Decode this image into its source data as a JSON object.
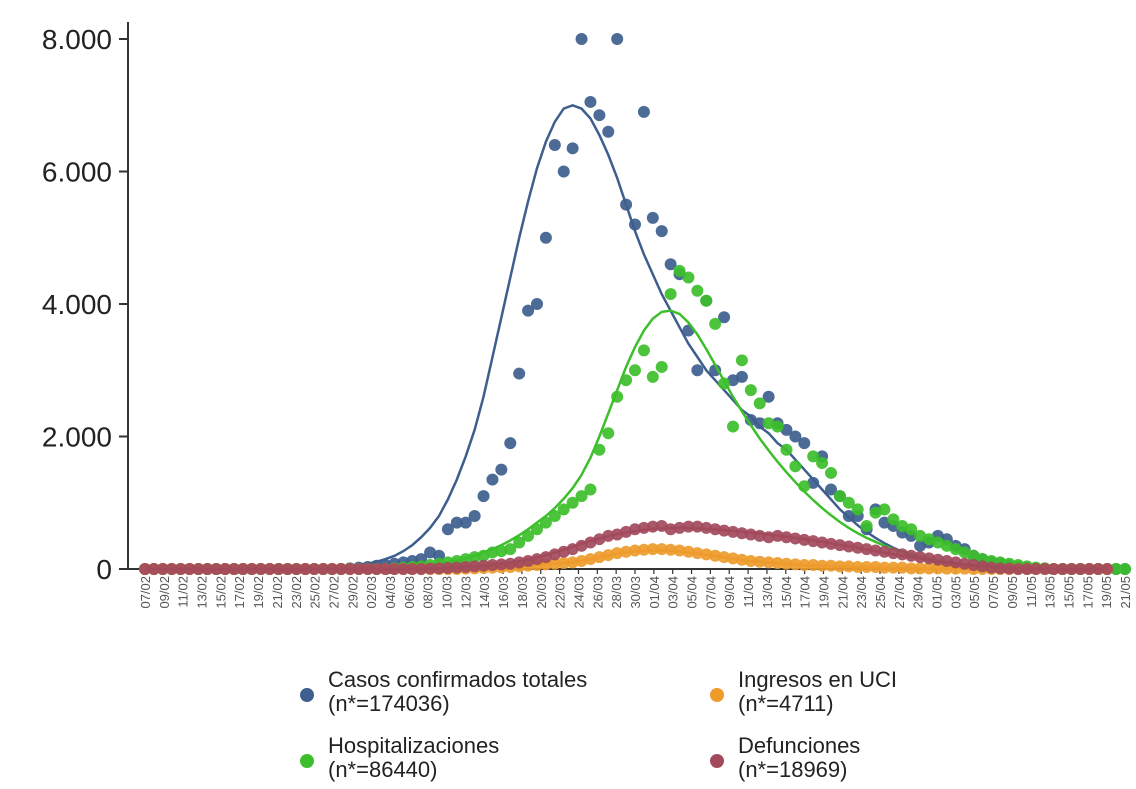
{
  "chart_data": {
    "type": "scatter",
    "title": "",
    "xlabel": "",
    "ylabel": "",
    "ylim": [
      0,
      8000
    ],
    "yticks": [
      0,
      2000,
      4000,
      6000,
      8000
    ],
    "ytick_labels": [
      "0",
      "2.000",
      "4.000",
      "6.000",
      "8.000"
    ],
    "x_tick_labels": [
      "07/02",
      "09/02",
      "11/02",
      "13/02",
      "15/02",
      "17/02",
      "19/02",
      "21/02",
      "23/02",
      "25/02",
      "27/02",
      "29/02",
      "02/03",
      "04/03",
      "06/03",
      "08/03",
      "10/03",
      "12/03",
      "14/03",
      "16/03",
      "18/03",
      "20/03",
      "22/03",
      "24/03",
      "26/03",
      "28/03",
      "30/03",
      "01/04",
      "03/04",
      "05/04",
      "07/04",
      "09/04",
      "11/04",
      "13/04",
      "15/04",
      "17/04",
      "19/04",
      "21/04",
      "23/04",
      "25/04",
      "27/04",
      "29/04",
      "01/05",
      "03/05",
      "05/05",
      "07/05",
      "09/05",
      "11/05",
      "13/05",
      "15/05",
      "17/05",
      "19/05",
      "21/05"
    ],
    "grid": false,
    "legend_position": "bottom",
    "series": [
      {
        "name": "Casos confirmados totales",
        "n_label": "(n*=174036)",
        "color": "#3e5e8e",
        "points": [
          0,
          0,
          0,
          0,
          0,
          0,
          0,
          0,
          0,
          0,
          0,
          0,
          0,
          0,
          0,
          0,
          0,
          0,
          0,
          0,
          0,
          0,
          0,
          10,
          20,
          30,
          50,
          60,
          80,
          100,
          120,
          150,
          250,
          200,
          600,
          700,
          700,
          800,
          1100,
          1350,
          1500,
          1900,
          2950,
          3900,
          4000,
          5000,
          6400,
          6000,
          6350,
          8000,
          7050,
          6850,
          6600,
          8000,
          5500,
          5200,
          6900,
          5300,
          5100,
          4600,
          4450,
          3600,
          3000,
          4050,
          3000,
          3800,
          2850,
          2900,
          2250,
          2200,
          2600,
          2200,
          2100,
          2000,
          1900,
          1300,
          1700,
          1200,
          1100,
          800,
          800,
          600,
          900,
          700,
          650,
          550,
          500,
          350,
          400,
          500,
          450,
          350,
          300,
          200,
          150,
          100,
          80,
          50,
          30,
          20,
          10,
          10,
          0,
          0,
          0,
          0,
          0,
          0,
          0,
          0,
          0
        ],
        "trend": [
          0,
          0,
          0,
          0,
          0,
          0,
          0,
          0,
          0,
          0,
          0,
          0,
          0,
          0,
          0,
          0,
          0,
          0,
          0,
          5,
          10,
          20,
          30,
          40,
          60,
          80,
          110,
          150,
          200,
          270,
          360,
          480,
          620,
          800,
          1050,
          1350,
          1700,
          2100,
          2600,
          3200,
          3800,
          4400,
          5000,
          5550,
          6050,
          6450,
          6750,
          6950,
          7000,
          6950,
          6800,
          6550,
          6250,
          5900,
          5500,
          5100,
          4750,
          4450,
          4150,
          3900,
          3650,
          3400,
          3200,
          3000,
          2850,
          2700,
          2550,
          2400,
          2300,
          2150,
          2050,
          1900,
          1800,
          1650,
          1500,
          1350,
          1200,
          1050,
          900,
          780,
          660,
          560,
          470,
          390,
          320,
          260,
          210,
          170,
          130,
          100,
          80,
          60,
          45,
          30,
          20,
          12,
          6,
          2,
          0,
          0,
          0,
          0,
          0,
          0,
          0,
          0,
          0,
          0
        ]
      },
      {
        "name": "Hospitalizaciones",
        "n_label": "(n*=86440)",
        "color": "#3cbf2a",
        "points": [
          0,
          0,
          0,
          0,
          0,
          0,
          0,
          0,
          0,
          0,
          0,
          0,
          0,
          0,
          0,
          0,
          0,
          0,
          0,
          0,
          0,
          0,
          0,
          0,
          0,
          0,
          0,
          0,
          10,
          20,
          30,
          40,
          60,
          80,
          100,
          120,
          150,
          180,
          200,
          250,
          270,
          300,
          400,
          500,
          600,
          700,
          800,
          900,
          1000,
          1100,
          1200,
          1800,
          2050,
          2600,
          2850,
          3000,
          3300,
          2900,
          3050,
          4150,
          4500,
          4400,
          4200,
          4050,
          3700,
          2800,
          2150,
          3150,
          2700,
          2500,
          2200,
          2150,
          1800,
          1550,
          1250,
          1700,
          1600,
          1450,
          1100,
          1000,
          900,
          650,
          850,
          900,
          750,
          650,
          600,
          500,
          450,
          400,
          350,
          300,
          250,
          200,
          150,
          120,
          100,
          80,
          60,
          40,
          20,
          10,
          0,
          0,
          0,
          0,
          0,
          0,
          0,
          0,
          0
        ],
        "trend": [
          0,
          0,
          0,
          0,
          0,
          0,
          0,
          0,
          0,
          0,
          0,
          0,
          0,
          0,
          0,
          0,
          0,
          0,
          0,
          0,
          0,
          0,
          0,
          0,
          0,
          0,
          0,
          0,
          10,
          20,
          30,
          45,
          60,
          80,
          100,
          130,
          160,
          200,
          250,
          300,
          360,
          430,
          510,
          600,
          700,
          800,
          920,
          1060,
          1220,
          1420,
          1680,
          2000,
          2350,
          2700,
          3050,
          3350,
          3600,
          3780,
          3880,
          3900,
          3850,
          3720,
          3540,
          3320,
          3080,
          2840,
          2600,
          2380,
          2170,
          1970,
          1790,
          1620,
          1460,
          1310,
          1170,
          1040,
          920,
          810,
          710,
          620,
          540,
          470,
          410,
          350,
          300,
          260,
          220,
          190,
          160,
          130,
          110,
          90,
          70,
          55,
          40,
          30,
          20,
          12,
          6,
          2,
          0,
          0,
          0,
          0,
          0,
          0,
          0,
          0,
          0
        ]
      },
      {
        "name": "Ingresos en UCI",
        "n_label": "(n*=4711)",
        "color": "#ee9b2b",
        "points": [
          0,
          0,
          0,
          0,
          0,
          0,
          0,
          0,
          0,
          0,
          0,
          0,
          0,
          0,
          0,
          0,
          0,
          0,
          0,
          0,
          0,
          0,
          0,
          0,
          0,
          0,
          0,
          0,
          0,
          0,
          0,
          0,
          0,
          0,
          0,
          0,
          5,
          10,
          15,
          20,
          25,
          30,
          40,
          50,
          60,
          70,
          80,
          90,
          100,
          120,
          150,
          180,
          210,
          240,
          260,
          280,
          290,
          300,
          300,
          290,
          280,
          260,
          240,
          220,
          200,
          180,
          160,
          140,
          120,
          110,
          100,
          90,
          80,
          70,
          60,
          60,
          50,
          50,
          40,
          40,
          30,
          30,
          30,
          20,
          20,
          20,
          10,
          10,
          10,
          10,
          5,
          5,
          5,
          0,
          0,
          0,
          0,
          0,
          0,
          0,
          0,
          0,
          0,
          0,
          0,
          0,
          0,
          0,
          0
        ],
        "trend": [
          0,
          0,
          0,
          0,
          0,
          0,
          0,
          0,
          0,
          0,
          0,
          0,
          0,
          0,
          0,
          0,
          0,
          0,
          0,
          0,
          0,
          0,
          0,
          0,
          0,
          0,
          0,
          0,
          0,
          0,
          0,
          0,
          0,
          0,
          0,
          0,
          5,
          10,
          15,
          20,
          25,
          30,
          40,
          50,
          60,
          70,
          80,
          90,
          105,
          125,
          150,
          180,
          205,
          230,
          250,
          265,
          275,
          280,
          280,
          275,
          265,
          250,
          235,
          215,
          195,
          175,
          155,
          138,
          122,
          108,
          96,
          85,
          75,
          66,
          58,
          51,
          45,
          40,
          35,
          31,
          27,
          23,
          20,
          17,
          14,
          12,
          10,
          8,
          6,
          5,
          4,
          3,
          2,
          1,
          0,
          0,
          0,
          0,
          0,
          0,
          0,
          0,
          0,
          0,
          0,
          0,
          0,
          0,
          0
        ]
      },
      {
        "name": "Defunciones",
        "n_label": "(n*=18969)",
        "color": "#a24a5c",
        "points": [
          0,
          0,
          0,
          0,
          0,
          0,
          0,
          0,
          0,
          0,
          0,
          0,
          0,
          0,
          0,
          0,
          0,
          0,
          0,
          0,
          0,
          0,
          0,
          0,
          0,
          0,
          0,
          0,
          0,
          0,
          0,
          0,
          5,
          10,
          15,
          20,
          30,
          40,
          50,
          60,
          70,
          80,
          100,
          120,
          150,
          180,
          220,
          260,
          300,
          350,
          400,
          450,
          500,
          520,
          560,
          600,
          620,
          640,
          650,
          600,
          620,
          640,
          640,
          620,
          600,
          580,
          560,
          540,
          520,
          500,
          480,
          500,
          480,
          460,
          440,
          420,
          400,
          380,
          360,
          340,
          320,
          300,
          280,
          260,
          240,
          220,
          200,
          180,
          160,
          140,
          120,
          100,
          80,
          60,
          40,
          20,
          10,
          5,
          0,
          0,
          0,
          0,
          0,
          0,
          0,
          0,
          0,
          0,
          0
        ],
        "trend": [
          0,
          0,
          0,
          0,
          0,
          0,
          0,
          0,
          0,
          0,
          0,
          0,
          0,
          0,
          0,
          0,
          0,
          0,
          0,
          0,
          0,
          0,
          0,
          0,
          0,
          0,
          0,
          0,
          0,
          0,
          0,
          0,
          5,
          10,
          15,
          20,
          28,
          38,
          50,
          63,
          78,
          96,
          118,
          144,
          175,
          210,
          250,
          292,
          336,
          380,
          422,
          460,
          495,
          525,
          550,
          572,
          590,
          605,
          615,
          620,
          620,
          617,
          612,
          605,
          596,
          586,
          575,
          563,
          550,
          536,
          521,
          505,
          488,
          470,
          451,
          431,
          410,
          388,
          365,
          342,
          318,
          294,
          270,
          246,
          222,
          199,
          177,
          156,
          136,
          117,
          99,
          83,
          68,
          55,
          43,
          33,
          24,
          17,
          11,
          6,
          3,
          1,
          0,
          0,
          0,
          0,
          0,
          0,
          0
        ]
      }
    ]
  },
  "legend": [
    {
      "name": "Casos confirmados totales",
      "n_label": "(n*=174036)",
      "color": "#3e5e8e"
    },
    {
      "name": "Ingresos en UCI",
      "n_label": "(n*=4711)",
      "color": "#ee9b2b"
    },
    {
      "name": "Hospitalizaciones",
      "n_label": "(n*=86440)",
      "color": "#3cbf2a"
    },
    {
      "name": "Defunciones",
      "n_label": "(n*=18969)",
      "color": "#a24a5c"
    }
  ]
}
